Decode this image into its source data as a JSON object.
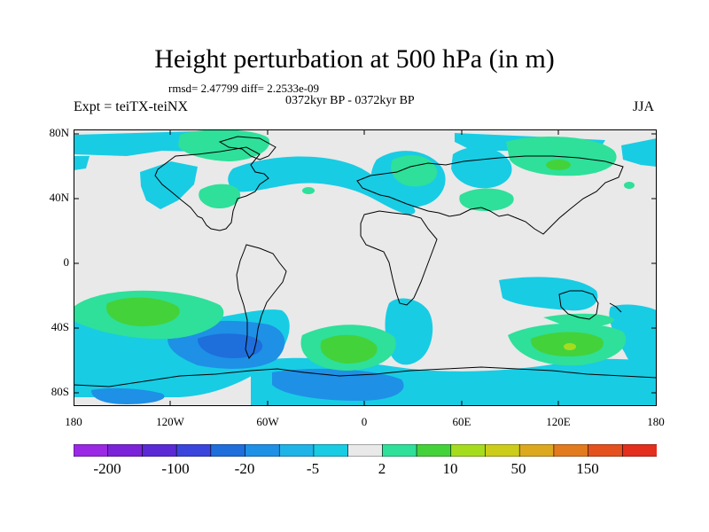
{
  "title": "Height perturbation at 500 hPa (in m)",
  "stats": "rmsd= 2.47799 diff= 2.2533e-09",
  "period": "0372kyr BP - 0372kyr BP",
  "experiment": "Expt = teiTX-teiNX",
  "season": "JJA",
  "lat_labels": [
    "80N",
    "40N",
    "0",
    "40S",
    "80S"
  ],
  "lon_labels": [
    "180",
    "120W",
    "60W",
    "0",
    "60E",
    "120E",
    "180"
  ],
  "colorbar": {
    "colors": [
      "#9a28e4",
      "#7a23d8",
      "#5b2ad6",
      "#3a45dc",
      "#1e6edc",
      "#1e90e6",
      "#1eb4e8",
      "#18cce4",
      "#e9e9e9",
      "#2ee09a",
      "#44d23a",
      "#a6dc1e",
      "#cccc1a",
      "#dca81e",
      "#e27a1e",
      "#e4501e",
      "#e42e1e"
    ],
    "tick_labels": [
      "-200",
      "-100",
      "-20",
      "-5",
      "2",
      "10",
      "50",
      "150"
    ]
  }
}
